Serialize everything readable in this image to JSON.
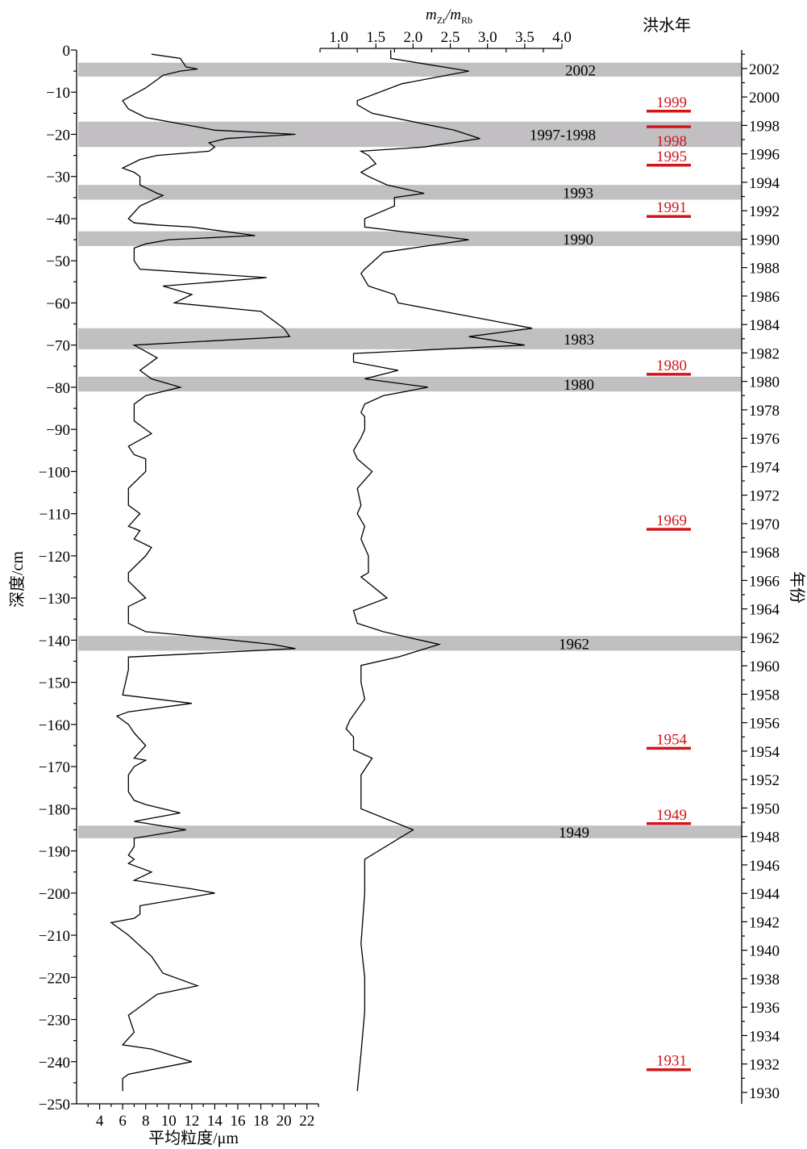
{
  "chart_data": {
    "type": "line",
    "depth_axis": {
      "label": "深度/cm",
      "range": [
        -250,
        0
      ],
      "ticks": [
        0,
        -10,
        -20,
        -30,
        -40,
        -50,
        -60,
        -70,
        -80,
        -90,
        -100,
        -110,
        -120,
        -130,
        -140,
        -150,
        -160,
        -170,
        -180,
        -190,
        -200,
        -210,
        -220,
        -230,
        -240,
        -250
      ]
    },
    "grain_axis": {
      "label": "平均粒度/μm",
      "range": [
        2,
        23
      ],
      "ticks": [
        4,
        6,
        8,
        10,
        12,
        14,
        16,
        18,
        20,
        22
      ]
    },
    "ratio_axis": {
      "label_main_1": "m",
      "label_sub_1": "Zr",
      "label_main_2": "/m",
      "label_sub_2": "Rb",
      "range": [
        0.75,
        4.0
      ],
      "ticks": [
        "1.0",
        "1.5",
        "2.0",
        "2.5",
        "3.0",
        "3.5",
        "4.0"
      ],
      "tick_values": [
        1.0,
        1.5,
        2.0,
        2.5,
        3.0,
        3.5,
        4.0
      ]
    },
    "year_axis": {
      "label": "年份",
      "range": [
        1929.2,
        2003.3
      ],
      "ticks": [
        2002,
        2000,
        1998,
        1996,
        1994,
        1992,
        1990,
        1988,
        1986,
        1984,
        1982,
        1980,
        1978,
        1976,
        1974,
        1972,
        1970,
        1968,
        1966,
        1964,
        1962,
        1960,
        1958,
        1956,
        1954,
        1952,
        1950,
        1948,
        1946,
        1944,
        1942,
        1940,
        1938,
        1936,
        1934,
        1932,
        1930
      ]
    },
    "flood_column_title": "洪水年",
    "bands": [
      {
        "label": "2002",
        "depth_top": -3.0,
        "depth_bottom": -6.3
      },
      {
        "label": "1997-1998",
        "depth_top": -17.0,
        "depth_bottom": -23.0
      },
      {
        "label": "1993",
        "depth_top": -32.0,
        "depth_bottom": -35.5
      },
      {
        "label": "1990",
        "depth_top": -43.0,
        "depth_bottom": -46.5
      },
      {
        "label": "1983",
        "depth_top": -66.0,
        "depth_bottom": -71.0
      },
      {
        "label": "1980",
        "depth_top": -77.5,
        "depth_bottom": -81.0
      },
      {
        "label": "1962",
        "depth_top": -139.0,
        "depth_bottom": -142.5
      },
      {
        "label": "1949",
        "depth_top": -184.0,
        "depth_bottom": -187.0
      }
    ],
    "flood_years": [
      {
        "label": "1999",
        "year": 1999.0
      },
      {
        "label": "1998",
        "year": 1997.9
      },
      {
        "label": "1995",
        "year": 1995.2
      },
      {
        "label": "1991",
        "year": 1991.6
      },
      {
        "label": "1980",
        "year": 1980.5
      },
      {
        "label": "1969",
        "year": 1969.6
      },
      {
        "label": "1954",
        "year": 1954.2
      },
      {
        "label": "1949",
        "year": 1948.9
      },
      {
        "label": "1931",
        "year": 1931.6
      }
    ],
    "series": [
      {
        "axis": "grain",
        "points": [
          [
            8.5,
            -1
          ],
          [
            11.0,
            -2
          ],
          [
            11.5,
            -4
          ],
          [
            12.5,
            -4.5
          ],
          [
            11.0,
            -5
          ],
          [
            9.5,
            -6
          ],
          [
            9.0,
            -7
          ],
          [
            8.0,
            -9
          ],
          [
            6.0,
            -12
          ],
          [
            6.5,
            -14
          ],
          [
            8.0,
            -16
          ],
          [
            12.0,
            -18
          ],
          [
            14.0,
            -19
          ],
          [
            21.0,
            -20
          ],
          [
            15.0,
            -21
          ],
          [
            13.5,
            -22
          ],
          [
            14.0,
            -23
          ],
          [
            13.5,
            -24
          ],
          [
            9.0,
            -25
          ],
          [
            7.5,
            -26
          ],
          [
            6.0,
            -28
          ],
          [
            7.0,
            -29
          ],
          [
            7.5,
            -30
          ],
          [
            7.5,
            -32
          ],
          [
            9.0,
            -34
          ],
          [
            9.5,
            -34.5
          ],
          [
            7.5,
            -37
          ],
          [
            6.5,
            -40
          ],
          [
            7.0,
            -41
          ],
          [
            9.0,
            -41.5
          ],
          [
            12.0,
            -42
          ],
          [
            17.5,
            -44
          ],
          [
            10.0,
            -45
          ],
          [
            8.0,
            -46
          ],
          [
            7.0,
            -47
          ],
          [
            7.0,
            -50
          ],
          [
            7.5,
            -52
          ],
          [
            18.5,
            -54
          ],
          [
            9.5,
            -56
          ],
          [
            12.0,
            -58
          ],
          [
            10.5,
            -60
          ],
          [
            18.0,
            -62
          ],
          [
            20.0,
            -66
          ],
          [
            20.5,
            -68
          ],
          [
            7.0,
            -70
          ],
          [
            9.0,
            -73
          ],
          [
            7.5,
            -76
          ],
          [
            8.5,
            -78
          ],
          [
            11.0,
            -80
          ],
          [
            8.0,
            -82
          ],
          [
            7.0,
            -84
          ],
          [
            7.0,
            -88
          ],
          [
            8.5,
            -91
          ],
          [
            6.5,
            -94
          ],
          [
            7.0,
            -96
          ],
          [
            8.0,
            -97
          ],
          [
            8.0,
            -100
          ],
          [
            6.5,
            -104
          ],
          [
            6.5,
            -108
          ],
          [
            7.5,
            -110
          ],
          [
            6.5,
            -113
          ],
          [
            7.5,
            -114
          ],
          [
            7.0,
            -116
          ],
          [
            8.5,
            -118
          ],
          [
            8.0,
            -120
          ],
          [
            6.5,
            -124
          ],
          [
            6.5,
            -126
          ],
          [
            8.0,
            -130
          ],
          [
            6.5,
            -132
          ],
          [
            6.5,
            -136
          ],
          [
            8.0,
            -138
          ],
          [
            12.0,
            -139
          ],
          [
            19.0,
            -141
          ],
          [
            21.0,
            -142
          ],
          [
            6.5,
            -144
          ],
          [
            6.5,
            -147
          ],
          [
            6.0,
            -153
          ],
          [
            12.0,
            -155
          ],
          [
            6.5,
            -157
          ],
          [
            5.5,
            -158
          ],
          [
            6.5,
            -160
          ],
          [
            7.0,
            -162
          ],
          [
            8.0,
            -165
          ],
          [
            7.0,
            -168
          ],
          [
            8.0,
            -168.5
          ],
          [
            7.0,
            -170
          ],
          [
            6.5,
            -172
          ],
          [
            6.5,
            -176
          ],
          [
            7.0,
            -178
          ],
          [
            8.0,
            -179
          ],
          [
            11.0,
            -181
          ],
          [
            7.0,
            -183
          ],
          [
            11.5,
            -185
          ],
          [
            7.0,
            -187
          ],
          [
            7.0,
            -189
          ],
          [
            6.5,
            -191
          ],
          [
            7.0,
            -192
          ],
          [
            6.5,
            -193
          ],
          [
            8.5,
            -195
          ],
          [
            7.0,
            -197
          ],
          [
            12.0,
            -199
          ],
          [
            14.0,
            -200
          ],
          [
            7.5,
            -203
          ],
          [
            7.5,
            -205
          ],
          [
            7.0,
            -206
          ],
          [
            5.0,
            -207
          ],
          [
            6.5,
            -210
          ],
          [
            8.5,
            -215
          ],
          [
            9.5,
            -219
          ],
          [
            12.5,
            -222
          ],
          [
            9.0,
            -224
          ],
          [
            7.0,
            -228
          ],
          [
            6.5,
            -229
          ],
          [
            7.0,
            -233
          ],
          [
            6.0,
            -236
          ],
          [
            8.5,
            -237
          ],
          [
            12.0,
            -240
          ],
          [
            6.5,
            -243
          ],
          [
            6.0,
            -244
          ],
          [
            6.0,
            -247
          ]
        ]
      },
      {
        "axis": "ratio",
        "points": [
          [
            1.7,
            0
          ],
          [
            1.7,
            -2
          ],
          [
            2.75,
            -5
          ],
          [
            1.85,
            -8
          ],
          [
            1.25,
            -12
          ],
          [
            1.25,
            -13
          ],
          [
            1.45,
            -15
          ],
          [
            2.55,
            -19
          ],
          [
            2.9,
            -21
          ],
          [
            2.15,
            -23
          ],
          [
            1.3,
            -24
          ],
          [
            1.4,
            -25
          ],
          [
            1.5,
            -27
          ],
          [
            1.4,
            -28
          ],
          [
            1.3,
            -29
          ],
          [
            1.4,
            -30
          ],
          [
            1.65,
            -32
          ],
          [
            2.15,
            -34
          ],
          [
            1.75,
            -35
          ],
          [
            1.75,
            -37
          ],
          [
            1.35,
            -40
          ],
          [
            1.35,
            -42
          ],
          [
            2.75,
            -45
          ],
          [
            1.6,
            -48
          ],
          [
            1.35,
            -52
          ],
          [
            1.3,
            -53
          ],
          [
            1.4,
            -56
          ],
          [
            1.75,
            -58
          ],
          [
            1.8,
            -60
          ],
          [
            3.6,
            -66
          ],
          [
            2.75,
            -68
          ],
          [
            3.5,
            -70
          ],
          [
            1.2,
            -72
          ],
          [
            1.2,
            -74
          ],
          [
            1.8,
            -76
          ],
          [
            1.35,
            -78
          ],
          [
            2.2,
            -80
          ],
          [
            1.6,
            -82
          ],
          [
            1.35,
            -84
          ],
          [
            1.3,
            -86
          ],
          [
            1.35,
            -87
          ],
          [
            1.35,
            -90
          ],
          [
            1.3,
            -92
          ],
          [
            1.2,
            -95
          ],
          [
            1.25,
            -97
          ],
          [
            1.45,
            -100
          ],
          [
            1.25,
            -104
          ],
          [
            1.3,
            -108
          ],
          [
            1.25,
            -110
          ],
          [
            1.35,
            -113
          ],
          [
            1.3,
            -116
          ],
          [
            1.4,
            -120
          ],
          [
            1.4,
            -124
          ],
          [
            1.3,
            -125
          ],
          [
            1.65,
            -130
          ],
          [
            1.2,
            -133
          ],
          [
            1.25,
            -136
          ],
          [
            1.6,
            -138
          ],
          [
            2.35,
            -141
          ],
          [
            1.8,
            -144
          ],
          [
            1.3,
            -146
          ],
          [
            1.3,
            -150
          ],
          [
            1.35,
            -154
          ],
          [
            1.15,
            -159
          ],
          [
            1.1,
            -161
          ],
          [
            1.2,
            -163
          ],
          [
            1.2,
            -166
          ],
          [
            1.45,
            -168
          ],
          [
            1.3,
            -172
          ],
          [
            1.3,
            -180
          ],
          [
            2.0,
            -185
          ],
          [
            1.35,
            -192
          ],
          [
            1.35,
            -200
          ],
          [
            1.3,
            -212
          ],
          [
            1.35,
            -220
          ],
          [
            1.35,
            -228
          ],
          [
            1.3,
            -238
          ],
          [
            1.25,
            -247
          ]
        ]
      }
    ]
  }
}
